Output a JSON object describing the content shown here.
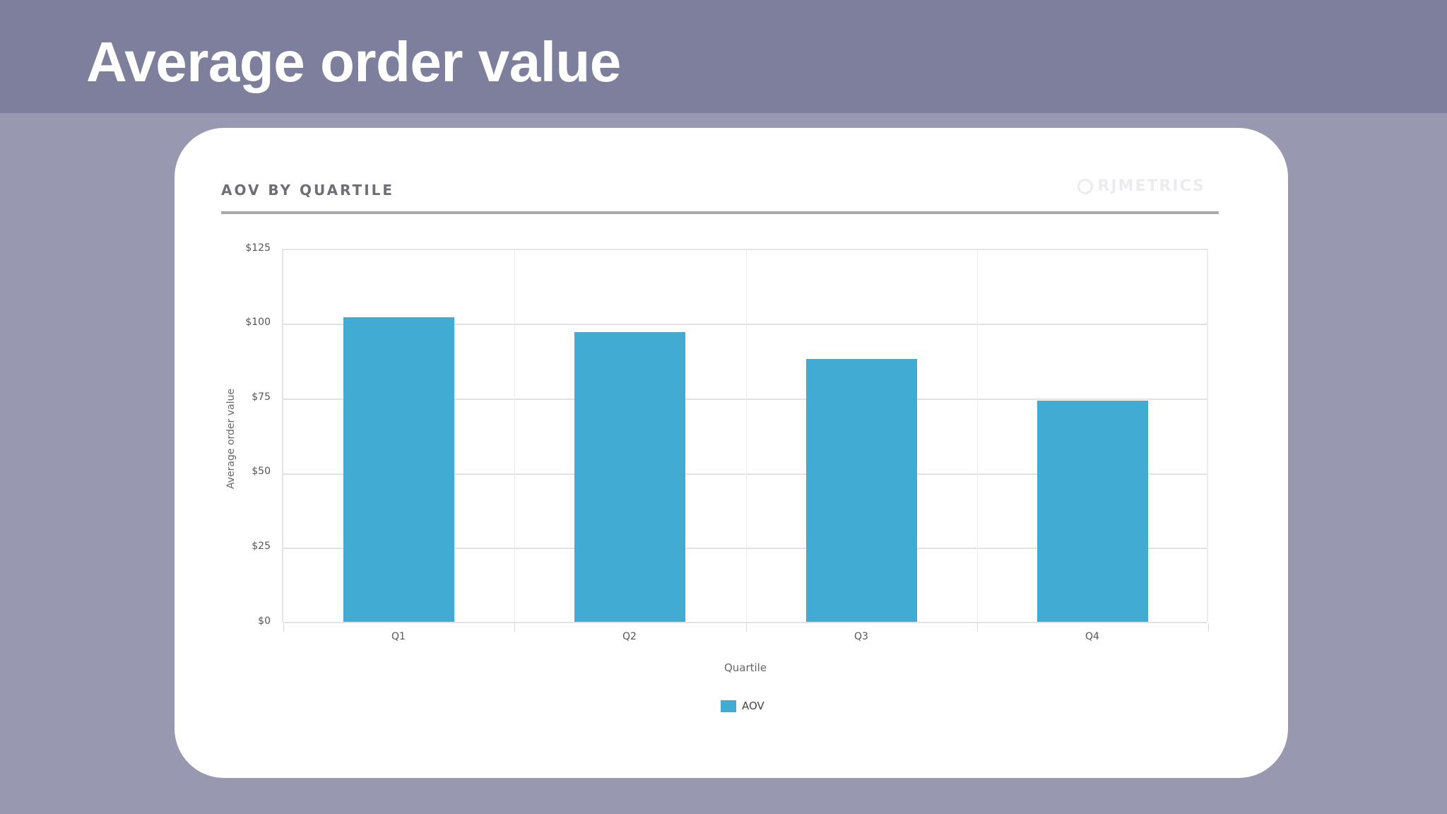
{
  "slide": {
    "title": "Average order value"
  },
  "card": {
    "title": "AOV BY QUARTILE",
    "brand": "RJMETRICS"
  },
  "colors": {
    "header_band": "#7e7f9c",
    "background": "#9898b0",
    "bar": "#41abd4"
  },
  "chart_data": {
    "type": "bar",
    "title": "AOV BY QUARTILE",
    "categories": [
      "Q1",
      "Q2",
      "Q3",
      "Q4"
    ],
    "series": [
      {
        "name": "AOV",
        "values": [
          102,
          97,
          88,
          74
        ]
      }
    ],
    "values": [
      102,
      97,
      88,
      74
    ],
    "xlabel": "Quartile",
    "ylabel": "Average order value",
    "ylim": [
      0,
      125
    ],
    "yticks": [
      "$0",
      "$25",
      "$50",
      "$75",
      "$100",
      "$125"
    ],
    "grid": true,
    "legend": {
      "position": "bottom",
      "entries": [
        "AOV"
      ]
    }
  }
}
